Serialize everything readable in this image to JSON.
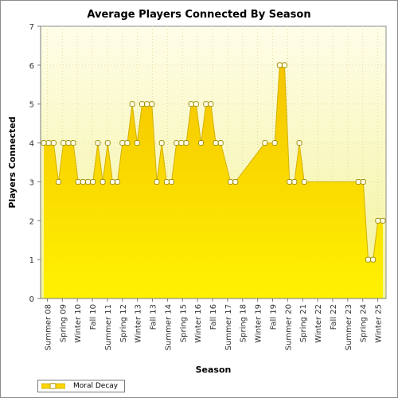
{
  "chart_data": {
    "type": "area",
    "title": "Average Players Connected By Season",
    "xlabel": "Season",
    "ylabel": "Players Connected",
    "ylim": [
      0,
      7
    ],
    "yticks": [
      0,
      1,
      2,
      3,
      4,
      5,
      6,
      7
    ],
    "grid": true,
    "legend_position": "bottom-left",
    "tick_labels": [
      "Summer 08",
      "Spring 09",
      "Winter 10",
      "Fall 10",
      "Summer 11",
      "Spring 12",
      "Winter 13",
      "Fall 13",
      "Summer 14",
      "Spring 15",
      "Winter 16",
      "Fall 16",
      "Summer 17",
      "Spring 18",
      "Winter 19",
      "Fall 19",
      "Summer 20",
      "Spring 21",
      "Winter 22",
      "Fall 22",
      "Summer 23",
      "Spring 24",
      "Winter 25"
    ],
    "series": [
      {
        "name": "Moral Decay",
        "color": "#ffd700",
        "values": [
          4,
          4,
          4,
          3,
          4,
          4,
          4,
          3,
          3,
          3,
          3,
          4,
          3,
          4,
          3,
          3,
          4,
          4,
          5,
          4,
          5,
          5,
          5,
          3,
          4,
          3,
          3,
          4,
          4,
          4,
          5,
          5,
          4,
          5,
          5,
          4,
          4,
          null,
          3,
          3,
          null,
          null,
          null,
          null,
          null,
          4,
          null,
          4,
          6,
          6,
          3,
          3,
          4,
          3,
          null,
          null,
          null,
          null,
          null,
          null,
          null,
          null,
          null,
          null,
          3,
          3,
          1,
          1,
          2,
          2
        ]
      }
    ]
  },
  "colors": {
    "plot_background_top": "#f7f2c8",
    "area_fill": "#ffd700",
    "area_stroke": "#d4b000",
    "marker_fill": "#fffbe6",
    "marker_stroke": "#9a8a00"
  }
}
